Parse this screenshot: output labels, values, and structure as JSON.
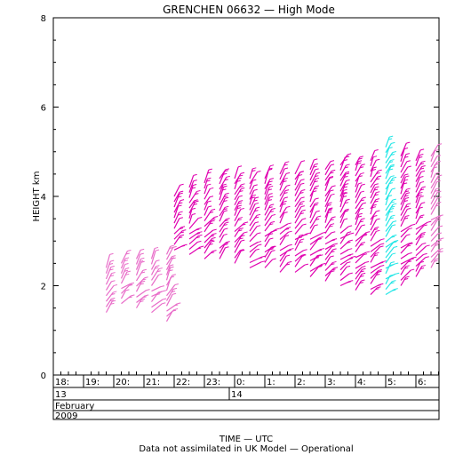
{
  "chart_data": {
    "type": "wind-profile",
    "title": "GRENCHEN 06632 — High Mode",
    "ylabel": "HEIGHT km",
    "xlabel": "TIME — UTC",
    "note": "Data not assimilated in UK Model — Operational",
    "ylim": [
      0,
      8
    ],
    "y_ticks": [
      "0",
      "2",
      "4",
      "6",
      "8"
    ],
    "x_ticks": [
      "18:",
      "19:",
      "20:",
      "21:",
      "22:",
      "23:",
      "0:",
      "1:",
      "2:",
      "3:",
      "4:",
      "5:",
      "6:"
    ],
    "date_row": [
      "13",
      "14"
    ],
    "month": "February",
    "year": "2009",
    "colors": {
      "high": "#e000b0",
      "mid": "#b4129a",
      "low": "#e86bc8",
      "cyan": "#22e6e6"
    },
    "profiles": [
      {
        "time": "19:45",
        "bottom": 1.4,
        "top": 2.4,
        "color": "low"
      },
      {
        "time": "20:15",
        "bottom": 1.6,
        "top": 2.5,
        "color": "low"
      },
      {
        "time": "20:45",
        "bottom": 1.5,
        "top": 2.6,
        "color": "low"
      },
      {
        "time": "21:15",
        "bottom": 1.4,
        "top": 2.6,
        "color": "low"
      },
      {
        "time": "21:45",
        "bottom": 1.2,
        "top": 2.7,
        "color": "low"
      },
      {
        "time": "22:00",
        "bottom": 2.8,
        "top": 4.0,
        "color": "high"
      },
      {
        "time": "22:30",
        "bottom": 2.7,
        "top": 4.2,
        "color": "high"
      },
      {
        "time": "23:00",
        "bottom": 2.6,
        "top": 4.3,
        "color": "high"
      },
      {
        "time": "23:30",
        "bottom": 2.6,
        "top": 4.4,
        "color": "high"
      },
      {
        "time": "00:00",
        "bottom": 2.5,
        "top": 4.4,
        "color": "high"
      },
      {
        "time": "00:30",
        "bottom": 2.4,
        "top": 4.4,
        "color": "high"
      },
      {
        "time": "01:00",
        "bottom": 2.4,
        "top": 4.4,
        "color": "high"
      },
      {
        "time": "01:30",
        "bottom": 2.3,
        "top": 4.5,
        "color": "high"
      },
      {
        "time": "02:00",
        "bottom": 2.3,
        "top": 4.5,
        "color": "high"
      },
      {
        "time": "02:30",
        "bottom": 2.2,
        "top": 4.6,
        "color": "high"
      },
      {
        "time": "03:00",
        "bottom": 2.1,
        "top": 4.6,
        "color": "high"
      },
      {
        "time": "03:30",
        "bottom": 2.0,
        "top": 4.7,
        "color": "high"
      },
      {
        "time": "04:00",
        "bottom": 1.9,
        "top": 4.7,
        "color": "high"
      },
      {
        "time": "04:30",
        "bottom": 1.8,
        "top": 4.8,
        "color": "high"
      },
      {
        "time": "05:00",
        "bottom": 1.8,
        "top": 5.1,
        "color": "cyan"
      },
      {
        "time": "05:30",
        "bottom": 2.0,
        "top": 4.9,
        "color": "high"
      },
      {
        "time": "06:00",
        "bottom": 2.2,
        "top": 4.8,
        "color": "high"
      },
      {
        "time": "06:30",
        "bottom": 2.4,
        "top": 4.9,
        "color": "low"
      }
    ]
  }
}
